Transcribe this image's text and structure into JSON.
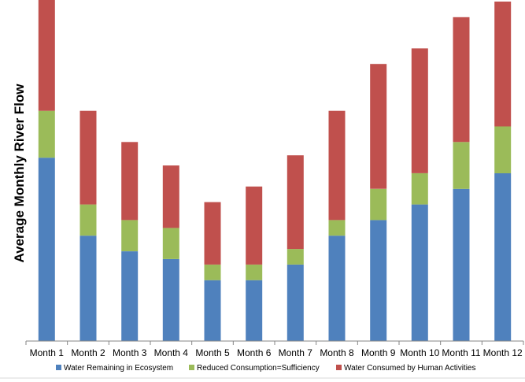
{
  "chart_data": {
    "type": "bar",
    "stacked": true,
    "ylabel": "Average Monthly River Flow",
    "categories": [
      "Month 1",
      "Month 2",
      "Month 3",
      "Month 4",
      "Month 5",
      "Month 6",
      "Month 7",
      "Month 8",
      "Month 9",
      "Month 10",
      "Month 11",
      "Month 12"
    ],
    "series": [
      {
        "name": "Water Remaining in Ecosystem",
        "color": "#4F81BD",
        "values": [
          235,
          135,
          115,
          105,
          78,
          78,
          98,
          135,
          155,
          175,
          195,
          215
        ]
      },
      {
        "name": "Reduced Consumption=Sufficiency",
        "color": "#9BBB59",
        "values": [
          60,
          40,
          40,
          40,
          20,
          20,
          20,
          20,
          40,
          40,
          60,
          60
        ]
      },
      {
        "name": "Water Consumed by Human Activities",
        "color": "#C0504D",
        "values": [
          142,
          120,
          100,
          80,
          80,
          100,
          120,
          140,
          160,
          160,
          160,
          160
        ]
      }
    ],
    "ylim": [
      0,
      437
    ],
    "grid": false,
    "legend": "bottom"
  }
}
